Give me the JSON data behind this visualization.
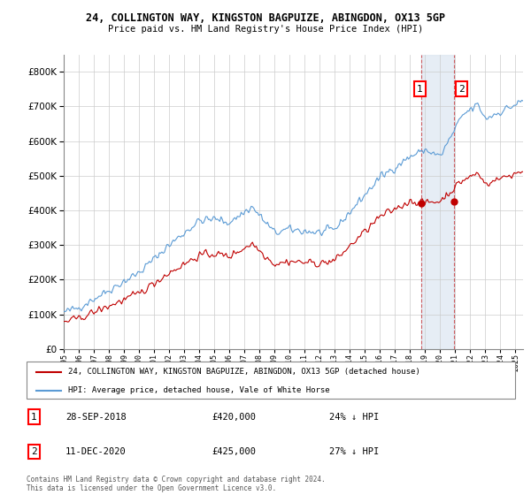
{
  "title1": "24, COLLINGTON WAY, KINGSTON BAGPUIZE, ABINGDON, OX13 5GP",
  "title2": "Price paid vs. HM Land Registry's House Price Index (HPI)",
  "legend_line1": "24, COLLINGTON WAY, KINGSTON BAGPUIZE, ABINGDON, OX13 5GP (detached house)",
  "legend_line2": "HPI: Average price, detached house, Vale of White Horse",
  "annotation1_date": "28-SEP-2018",
  "annotation1_price": "£420,000",
  "annotation1_hpi": "24% ↓ HPI",
  "annotation2_date": "11-DEC-2020",
  "annotation2_price": "£425,000",
  "annotation2_hpi": "27% ↓ HPI",
  "footer": "Contains HM Land Registry data © Crown copyright and database right 2024.\nThis data is licensed under the Open Government Licence v3.0.",
  "hpi_color": "#5b9bd5",
  "price_color": "#c00000",
  "vline_color": "#c00000",
  "shaded_color": "#dce6f1",
  "ylim": [
    0,
    850000
  ],
  "sale1_year": 2018.75,
  "sale1_price": 420000,
  "sale2_year": 2020.92,
  "sale2_price": 425000,
  "xlim_start": 1995,
  "xlim_end": 2025.5
}
